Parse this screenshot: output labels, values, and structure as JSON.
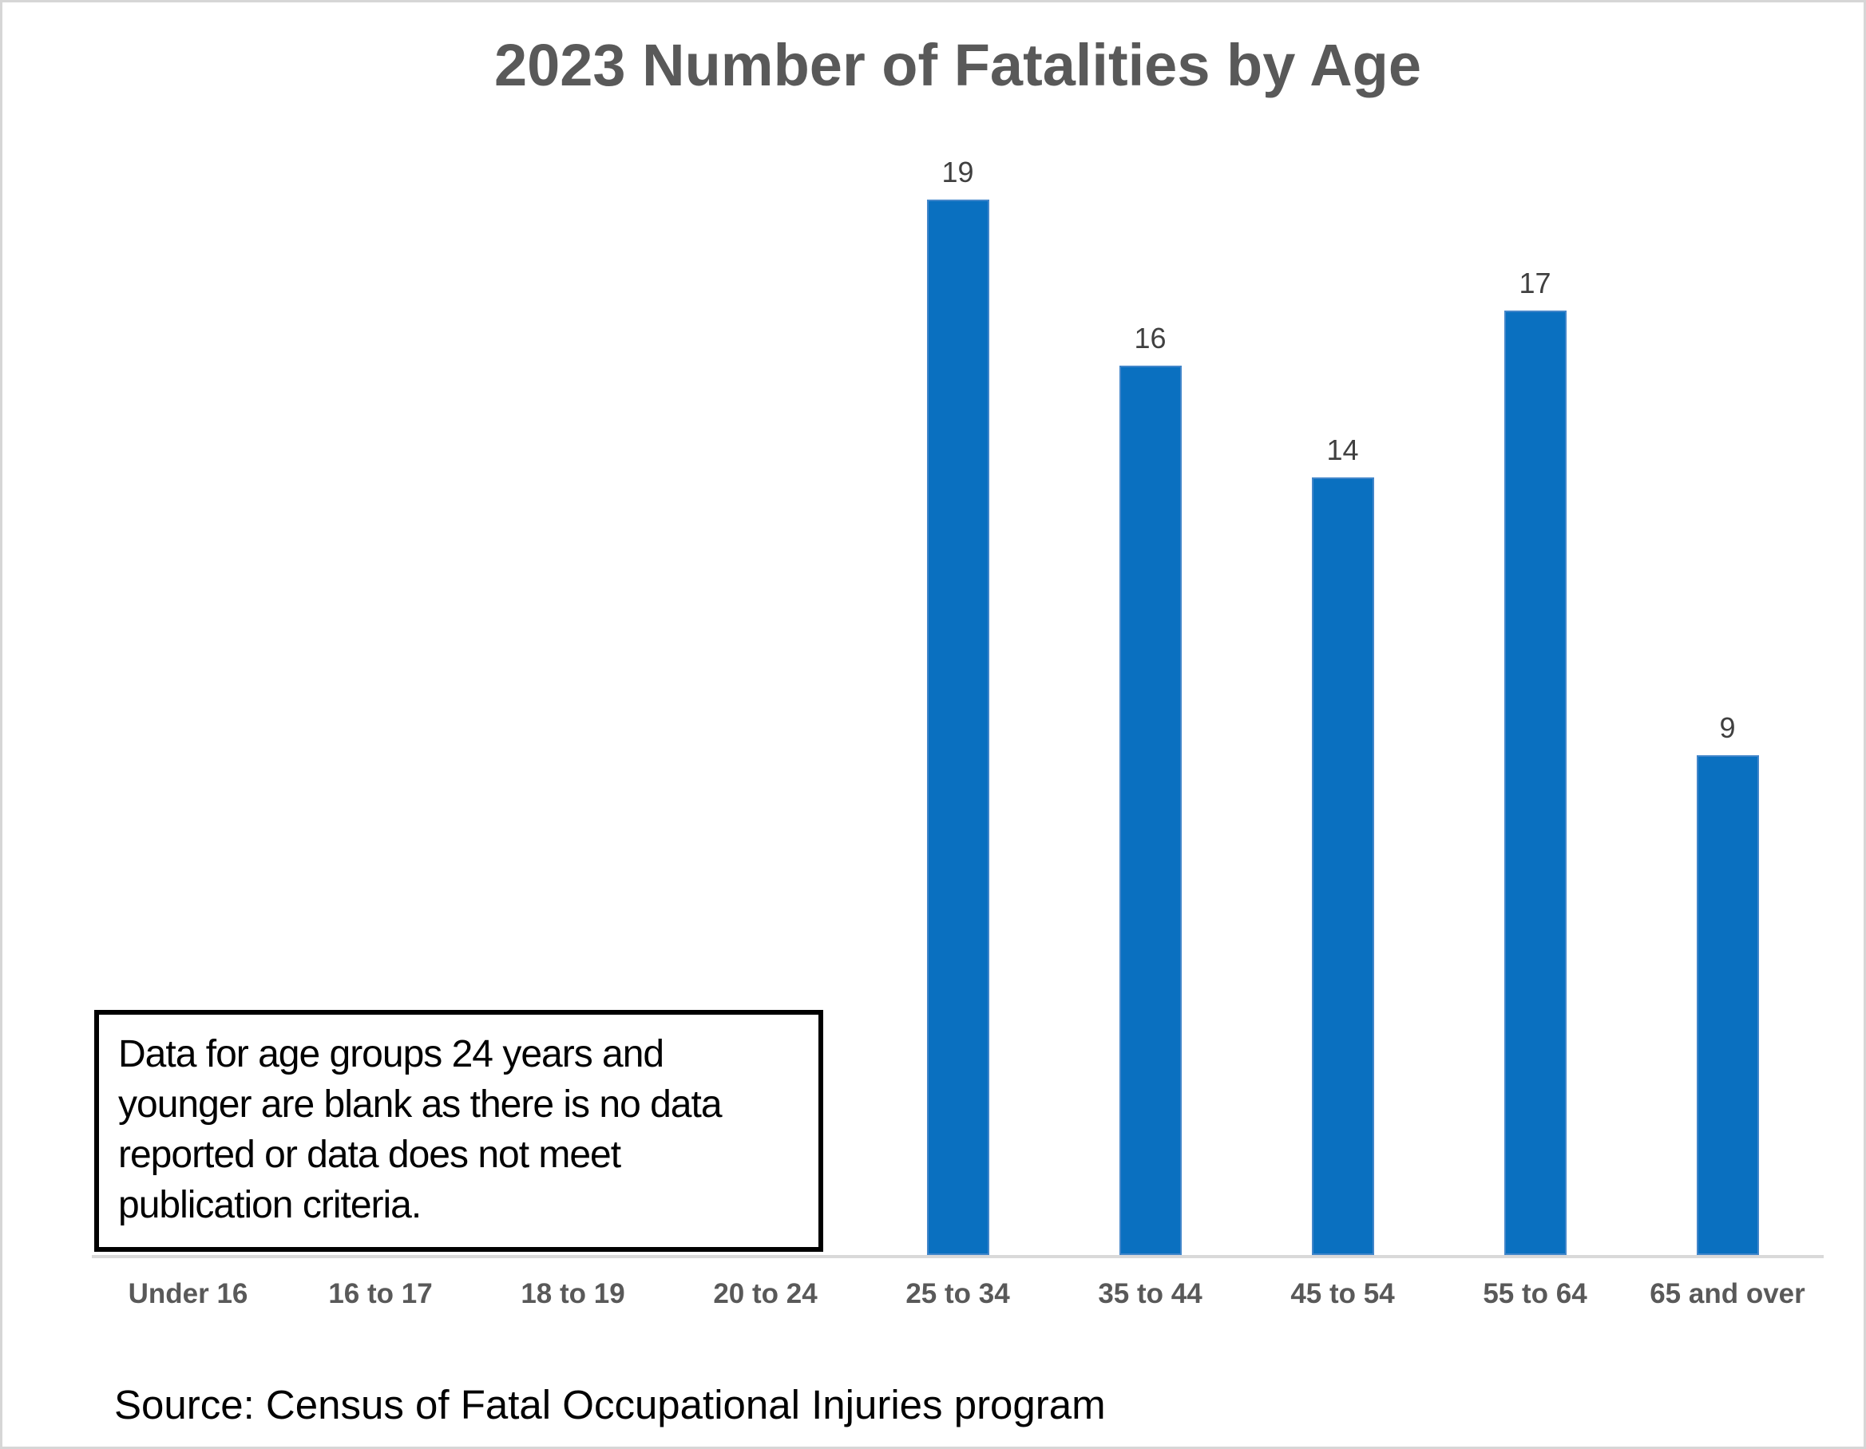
{
  "title": "2023 Number of Fatalities by Age",
  "annotation": {
    "lines": [
      "Data for age groups 24 years and",
      "younger are blank as there is no data",
      "reported or data does not meet",
      "publication criteria."
    ]
  },
  "source": "Source: Census of Fatal Occupational Injuries program",
  "colors": {
    "bar": "#0a70c0",
    "bar_edge": "#4286ca",
    "title_text": "#595959",
    "data_label_text": "#404040",
    "axis_line": "#d9d9d9",
    "frame_border": "#d6d6d6",
    "annotation_border": "#000000"
  },
  "chart_data": {
    "type": "bar",
    "title": "2023 Number of Fatalities by Age",
    "categories": [
      "Under 16",
      "16 to 17",
      "18 to 19",
      "20 to 24",
      "25 to 34",
      "35 to 44",
      "45 to 54",
      "55 to 64",
      "65 and over"
    ],
    "values": [
      null,
      null,
      null,
      null,
      19,
      16,
      14,
      17,
      9
    ],
    "blank_categories": [
      "Under 16",
      "16 to 17",
      "18 to 19",
      "20 to 24"
    ],
    "xlabel": "",
    "ylabel": "",
    "ylim": [
      0,
      20
    ],
    "grid": false,
    "legend": false,
    "data_labels": true,
    "bar_color": "#0a70c0"
  }
}
